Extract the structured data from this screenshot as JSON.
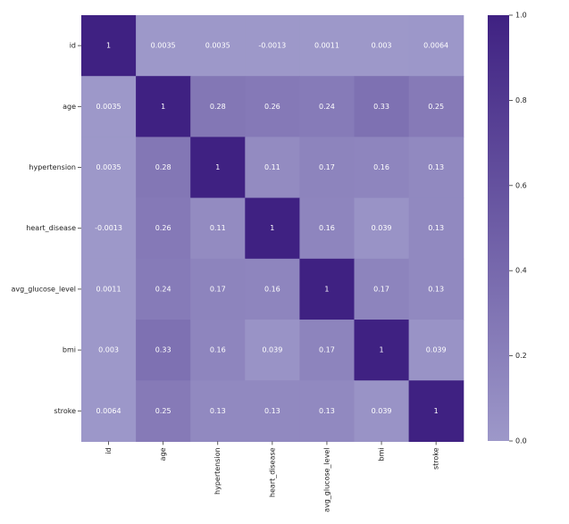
{
  "chart_data": {
    "type": "heatmap",
    "title": "",
    "xlabel": "",
    "ylabel": "",
    "rows": [
      "id",
      "age",
      "hypertension",
      "heart_disease",
      "avg_glucose_level",
      "bmi",
      "stroke"
    ],
    "columns": [
      "id",
      "age",
      "hypertension",
      "heart_disease",
      "avg_glucose_level",
      "bmi",
      "stroke"
    ],
    "values": [
      [
        1,
        0.0035,
        0.0035,
        -0.0013,
        0.0011,
        0.003,
        0.0064
      ],
      [
        0.0035,
        1,
        0.28,
        0.26,
        0.24,
        0.33,
        0.25
      ],
      [
        0.0035,
        0.28,
        1,
        0.11,
        0.17,
        0.16,
        0.13
      ],
      [
        -0.0013,
        0.26,
        0.11,
        1,
        0.16,
        0.039,
        0.13
      ],
      [
        0.0011,
        0.24,
        0.17,
        0.16,
        1,
        0.17,
        0.13
      ],
      [
        0.003,
        0.33,
        0.16,
        0.039,
        0.17,
        1,
        0.039
      ],
      [
        0.0064,
        0.25,
        0.13,
        0.13,
        0.13,
        0.039,
        1
      ]
    ],
    "annotations": [
      [
        "1",
        "0.0035",
        "0.0035",
        "-0.0013",
        "0.0011",
        "0.003",
        "0.0064"
      ],
      [
        "0.0035",
        "1",
        "0.28",
        "0.26",
        "0.24",
        "0.33",
        "0.25"
      ],
      [
        "0.0035",
        "0.28",
        "1",
        "0.11",
        "0.17",
        "0.16",
        "0.13"
      ],
      [
        "-0.0013",
        "0.26",
        "0.11",
        "1",
        "0.16",
        "0.039",
        "0.13"
      ],
      [
        "0.0011",
        "0.24",
        "0.17",
        "0.16",
        "1",
        "0.17",
        "0.13"
      ],
      [
        "0.003",
        "0.33",
        "0.16",
        "0.039",
        "0.17",
        "1",
        "0.039"
      ],
      [
        "0.0064",
        "0.25",
        "0.13",
        "0.13",
        "0.13",
        "0.039",
        "1"
      ]
    ],
    "colormap": "Purples",
    "color_low": "#9d98c9",
    "color_high": "#3f2182",
    "vmin": 0.0,
    "vmax": 1.0,
    "colorbar": {
      "ticks": [
        0.0,
        0.2,
        0.4,
        0.6,
        0.8,
        1.0
      ],
      "tick_labels": [
        "0.0",
        "0.2",
        "0.4",
        "0.6",
        "0.8",
        "1.0"
      ]
    },
    "grid": false,
    "legend": "colorbar-right"
  }
}
